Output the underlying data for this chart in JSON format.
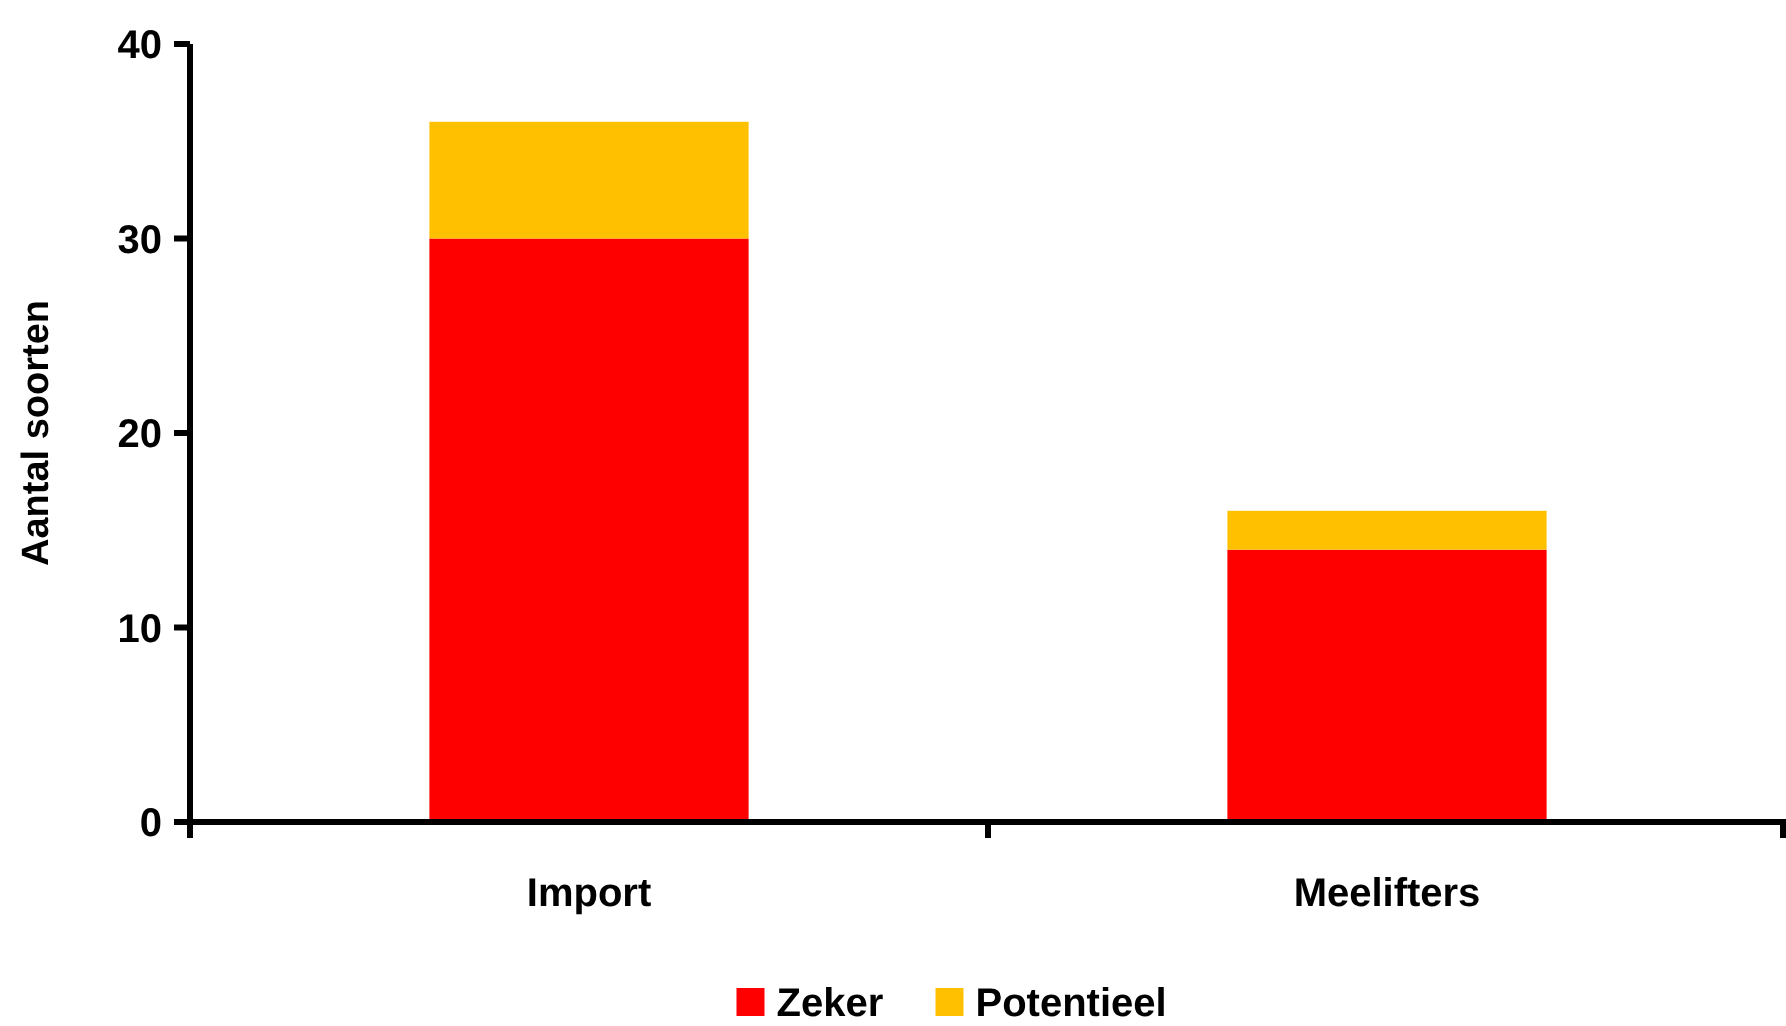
{
  "chart_data": {
    "type": "bar",
    "ylabel": "Aantal soorten",
    "categories": [
      "Import",
      "Meelifters"
    ],
    "stacked": true,
    "series": [
      {
        "name": "Zeker",
        "color": "#ff0000",
        "values": [
          30,
          14
        ]
      },
      {
        "name": "Potentieel",
        "color": "#ffc000",
        "values": [
          6,
          2
        ]
      }
    ],
    "ylim": [
      0,
      40
    ],
    "yticks": [
      0,
      10,
      20,
      30,
      40
    ],
    "grid": false,
    "legend": "bottom"
  }
}
